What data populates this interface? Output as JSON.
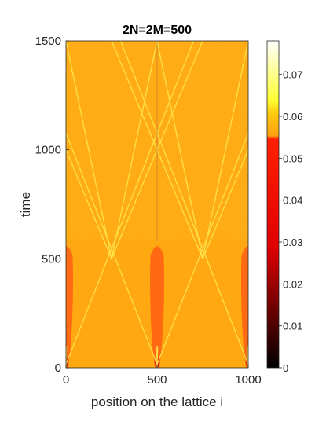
{
  "chart_data": {
    "type": "heatmap",
    "title": "2N=2M=500",
    "xlabel": "position on the lattice i",
    "ylabel": "time",
    "xlim": [
      0,
      1000
    ],
    "ylim": [
      0,
      1500
    ],
    "xticks": [
      0,
      500,
      1000
    ],
    "xtick_labels": [
      "0",
      "500",
      "1000"
    ],
    "yticks": [
      0,
      500,
      1000,
      1500
    ],
    "ytick_labels": [
      "0",
      "500",
      "1000",
      "1500"
    ],
    "colorbar": {
      "range": [
        0,
        0.078
      ],
      "ticks": [
        0,
        0.01,
        0.02,
        0.03,
        0.04,
        0.05,
        0.06,
        0.07
      ],
      "tick_labels": [
        "0",
        "0.01",
        "0.02",
        "0.03",
        "0.04",
        "0.05",
        "0.06",
        "0.07"
      ],
      "colormap": "hot"
    },
    "colors": {
      "background": "#ffa811",
      "texture": "#ffb21a",
      "front": "#ffe34a",
      "lobe": "#ff6a12",
      "hot_spot": "#d21a0a",
      "center_line": "#d8862a"
    },
    "features": {
      "sources_x": [
        0,
        500,
        1000
      ],
      "front_speed": 2,
      "front_start_time": 100,
      "lobe_half_width": 40,
      "lobe_end_time": 580,
      "hot_spot_end_time": 50,
      "front_crossing_times": [
        500,
        1000
      ],
      "upper_texture_start_time": 590
    }
  }
}
